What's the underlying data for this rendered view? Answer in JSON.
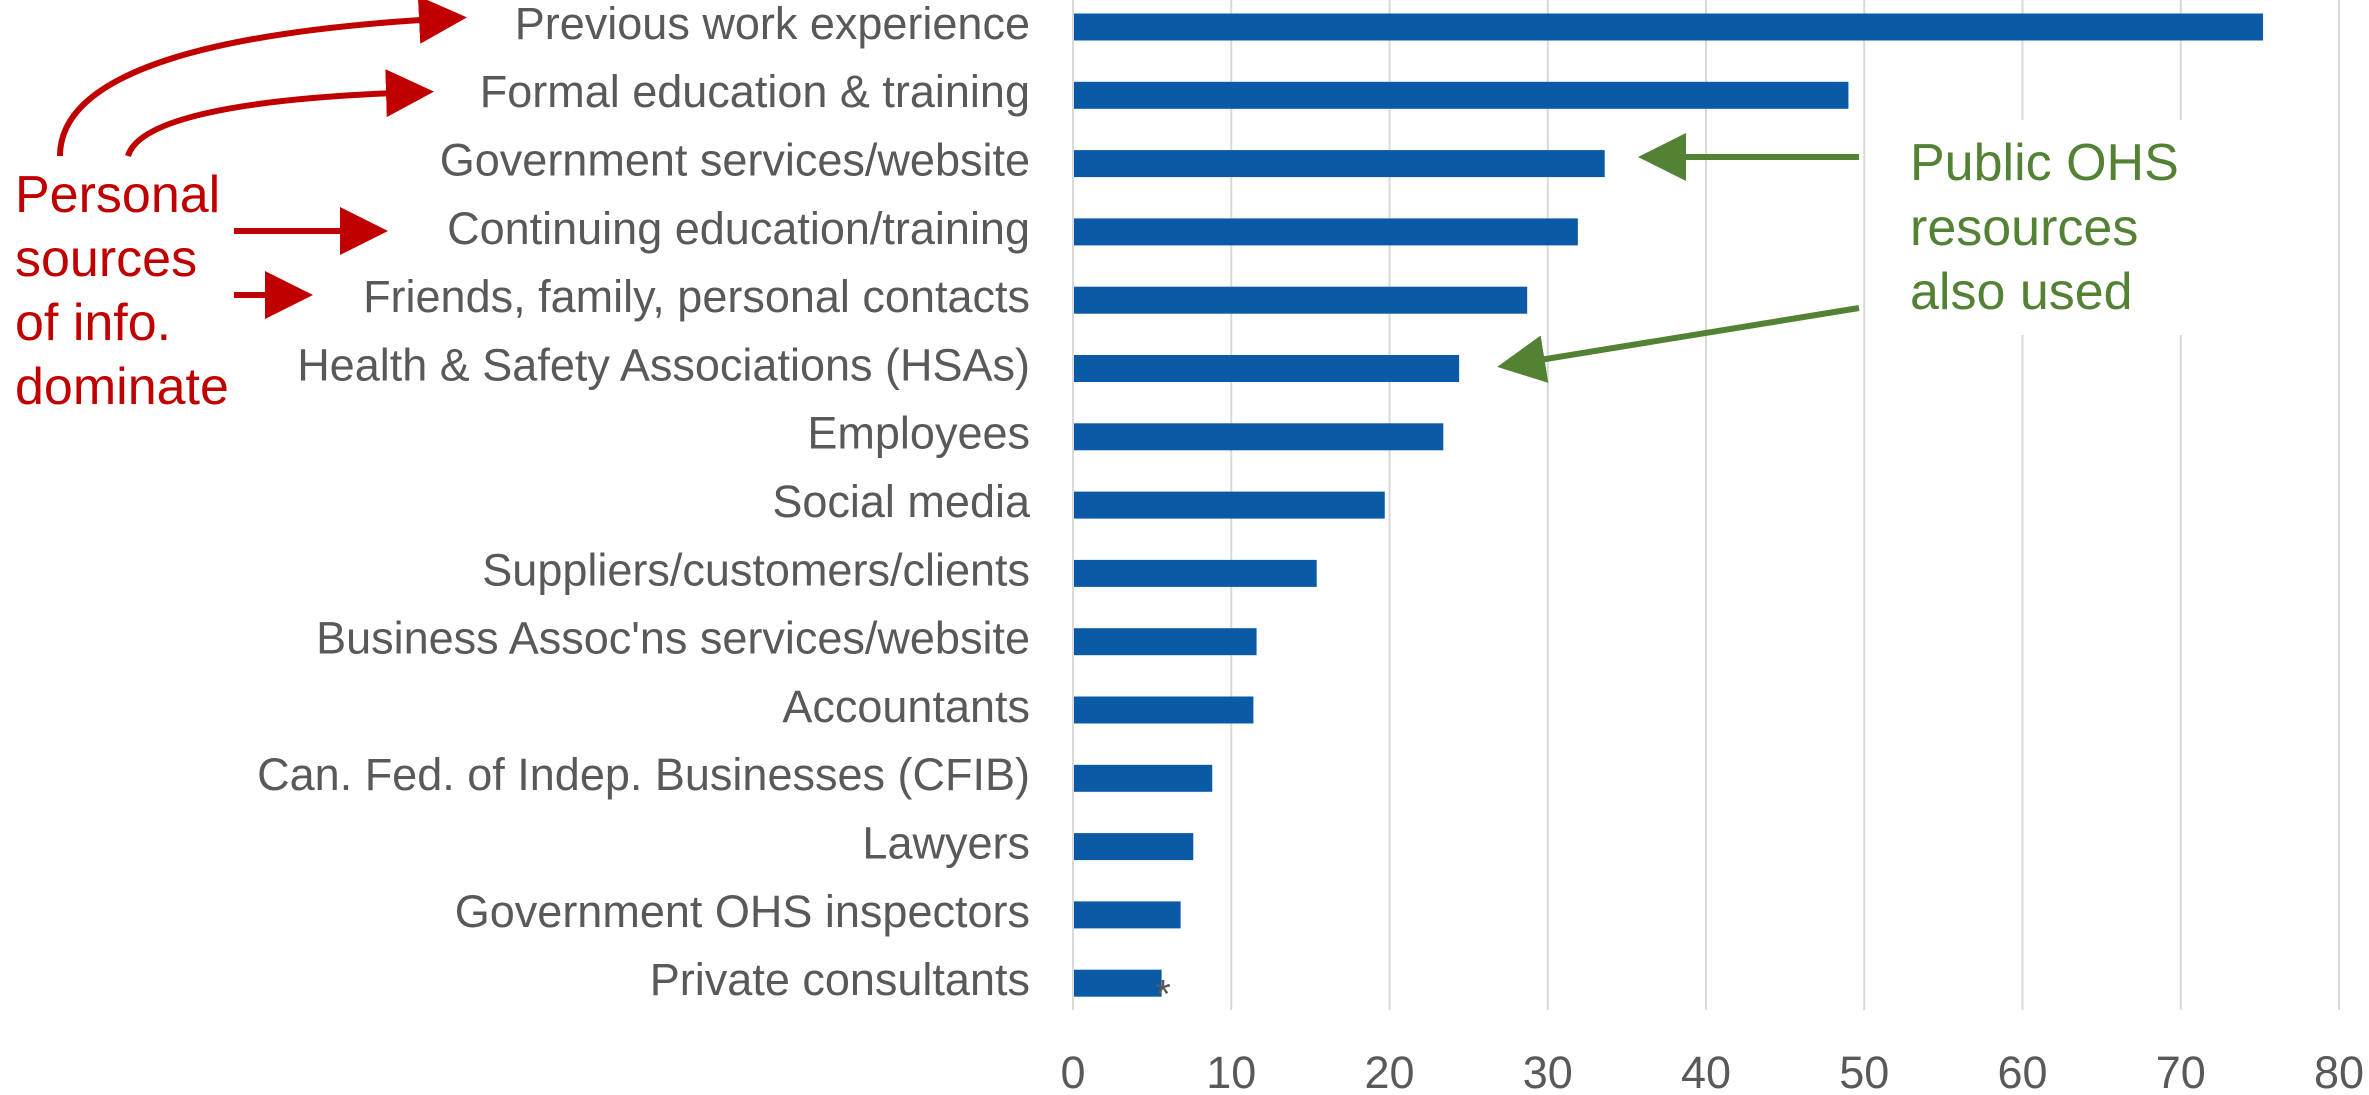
{
  "chart_data": {
    "type": "bar",
    "orientation": "horizontal",
    "categories": [
      "Previous work experience",
      "Formal education & training",
      "Government services/website",
      "Continuing education/training",
      "Friends, family, personal contacts",
      "Health & Safety Associations (HSAs)",
      "Employees",
      "Social media",
      "Suppliers/customers/clients",
      "Business Assoc'ns services/website",
      "Accountants",
      "Can. Fed. of Indep. Businesses (CFIB)",
      "Lawyers",
      "Government OHS inspectors",
      "Private consultants"
    ],
    "values": [
      75.2,
      49.0,
      33.6,
      31.9,
      28.7,
      24.4,
      23.4,
      19.7,
      15.4,
      11.6,
      11.4,
      8.8,
      7.6,
      6.8,
      5.6
    ],
    "color": "#0a5aa5",
    "xlim": [
      0,
      80
    ],
    "xticks": [
      0,
      10,
      20,
      30,
      40,
      50,
      60,
      70,
      80
    ],
    "grid": true,
    "annotations": [
      {
        "lines": [
          "Personal",
          "sources",
          "of info.",
          "dominate"
        ],
        "color": "#c00000"
      },
      {
        "lines": [
          "Public OHS",
          "resources",
          "also used"
        ],
        "color": "#548235"
      },
      {
        "text": "*"
      }
    ]
  }
}
